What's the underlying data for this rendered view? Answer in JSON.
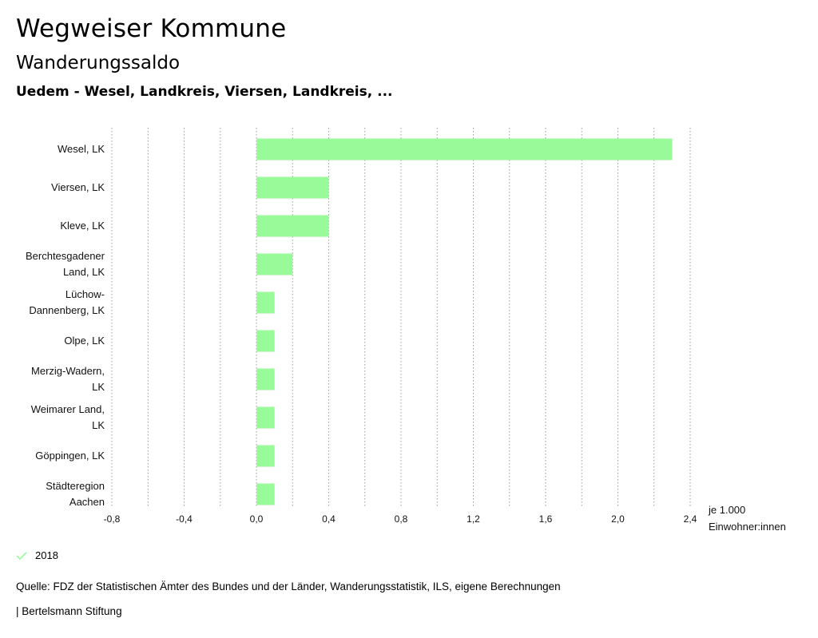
{
  "header": {
    "title": "Wegweiser Kommune",
    "indicator": "Wanderungssaldo",
    "regions": "Uedem - Wesel, Landkreis, Viersen, Landkreis, ..."
  },
  "chart_data": {
    "type": "bar",
    "orientation": "horizontal",
    "categories": [
      [
        "Wesel, LK"
      ],
      [
        "Viersen, LK"
      ],
      [
        "Kleve, LK"
      ],
      [
        "Berchtesgadener",
        "Land, LK"
      ],
      [
        "Lüchow-",
        "Dannenberg, LK"
      ],
      [
        "Olpe, LK"
      ],
      [
        "Merzig-Wadern,",
        "LK"
      ],
      [
        "Weimarer Land,",
        "LK"
      ],
      [
        "Göppingen, LK"
      ],
      [
        "Städteregion",
        "Aachen"
      ]
    ],
    "series": [
      {
        "name": "2018",
        "values": [
          2.3,
          0.4,
          0.4,
          0.2,
          0.1,
          0.1,
          0.1,
          0.1,
          0.1,
          0.1
        ]
      }
    ],
    "xlim": [
      -0.8,
      2.4
    ],
    "xticks": [
      "-0,8",
      "-0,4",
      "0,0",
      "0,4",
      "0,8",
      "1,2",
      "1,6",
      "2,0",
      "2,4"
    ],
    "xlabel": [
      "je 1.000",
      "Einwohner:innen"
    ],
    "grid": "vertical dotted",
    "colors": {
      "bar": "#98fa98",
      "grid": "#9a9a9a"
    }
  },
  "legend": {
    "label": "2018",
    "icon": "check-icon",
    "color": "#98fa98"
  },
  "footer": {
    "source": "Quelle: FDZ der Statistischen Ämter des Bundes und der Länder, Wanderungsstatistik, ILS, eigene Berechnungen",
    "brand": "| Bertelsmann Stiftung"
  }
}
